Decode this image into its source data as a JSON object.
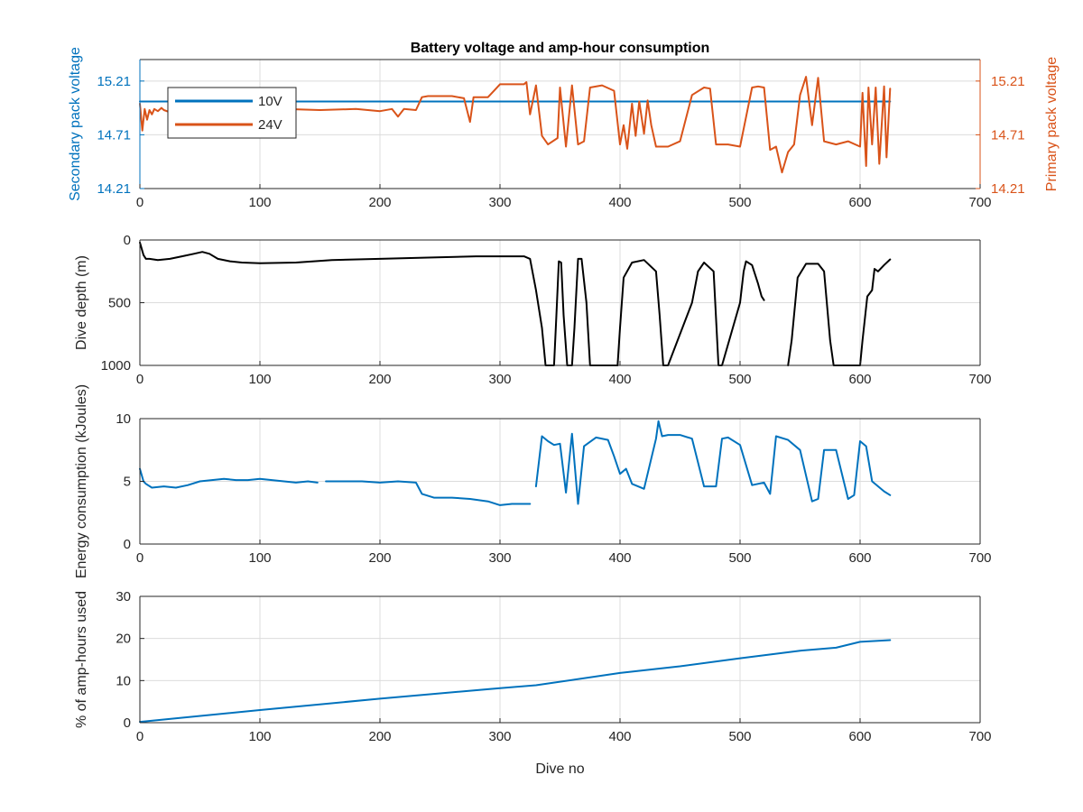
{
  "colors": {
    "blue": "#0072BD",
    "orange": "#D95319",
    "black": "#000000",
    "grid": "#DCDCDC",
    "axis": "#262626"
  },
  "chart_data": [
    {
      "type": "line",
      "title": "Battery voltage and amp-hour consumption",
      "xlabel": "",
      "ylabel": "Secondary pack voltage",
      "ylabel_right": "Primary pack voltage",
      "xlim": [
        0,
        700
      ],
      "ylim": [
        14.21,
        15.41
      ],
      "xticks": [
        0,
        100,
        200,
        300,
        400,
        500,
        600,
        700
      ],
      "yticks": [
        14.21,
        14.71,
        15.21
      ],
      "yticks_right": [
        14.21,
        14.71,
        15.21
      ],
      "legend": {
        "placement": "top-left",
        "entries": [
          "10V",
          "24V"
        ]
      },
      "grid": true,
      "series": [
        {
          "name": "10V",
          "color": "blue",
          "axis": "left",
          "x": [
            0,
            625
          ],
          "y": [
            15.02,
            15.02
          ]
        },
        {
          "name": "24V",
          "color": "orange",
          "axis": "right",
          "x": [
            0,
            2,
            4,
            6,
            8,
            10,
            12,
            15,
            18,
            20,
            25,
            30,
            40,
            60,
            80,
            100,
            120,
            150,
            180,
            200,
            210,
            215,
            220,
            230,
            235,
            240,
            260,
            270,
            275,
            278,
            282,
            290,
            295,
            300,
            310,
            320,
            322,
            325,
            330,
            335,
            340,
            348,
            350,
            355,
            360,
            365,
            370,
            375,
            385,
            395,
            400,
            403,
            406,
            410,
            413,
            416,
            420,
            423,
            426,
            430,
            440,
            450,
            460,
            470,
            475,
            480,
            490,
            500,
            510,
            515,
            520,
            525,
            530,
            535,
            540,
            545,
            550,
            555,
            560,
            565,
            570,
            580,
            590,
            600,
            602,
            605,
            607,
            610,
            613,
            616,
            620,
            622,
            625
          ],
          "y": [
            15.0,
            14.75,
            14.95,
            14.85,
            14.94,
            14.9,
            14.95,
            14.93,
            14.96,
            14.94,
            14.92,
            14.96,
            14.97,
            14.96,
            14.95,
            14.96,
            14.95,
            14.94,
            14.95,
            14.93,
            14.95,
            14.88,
            14.95,
            14.94,
            15.06,
            15.07,
            15.07,
            15.05,
            14.83,
            15.06,
            15.06,
            15.06,
            15.12,
            15.18,
            15.18,
            15.18,
            15.2,
            14.9,
            15.17,
            14.7,
            14.62,
            14.68,
            15.15,
            14.6,
            15.17,
            14.62,
            14.65,
            15.15,
            15.17,
            15.12,
            14.62,
            14.8,
            14.58,
            15.0,
            14.7,
            15.02,
            14.72,
            15.03,
            14.8,
            14.6,
            14.6,
            14.65,
            15.08,
            15.15,
            15.14,
            14.62,
            14.62,
            14.6,
            15.15,
            15.16,
            15.15,
            14.57,
            14.6,
            14.36,
            14.55,
            14.62,
            15.08,
            15.25,
            14.8,
            15.24,
            14.65,
            14.62,
            14.65,
            14.6,
            15.1,
            14.42,
            15.15,
            14.62,
            15.15,
            14.44,
            15.16,
            14.5,
            15.14
          ]
        }
      ]
    },
    {
      "type": "line",
      "title": "",
      "xlabel": "",
      "ylabel": "Dive depth (m)",
      "xlim": [
        0,
        700
      ],
      "ylim": [
        0,
        1000
      ],
      "y_reversed": true,
      "xticks": [
        0,
        100,
        200,
        300,
        400,
        500,
        600,
        700
      ],
      "yticks": [
        0,
        500,
        1000
      ],
      "grid": true,
      "series": [
        {
          "color": "black",
          "segments": [
            {
              "x": [
                0,
                3,
                5,
                8,
                15,
                25,
                35,
                45,
                52,
                58,
                65,
                75,
                85,
                100,
                130,
                160,
                200,
                240,
                280,
                320,
                325,
                330,
                335,
                338,
                345,
                347,
                349,
                351,
                353,
                356,
                360,
                362,
                365,
                368,
                372,
                375,
                398,
                400,
                403,
                410,
                420,
                430,
                433,
                436,
                440,
                460,
                465,
                470,
                478,
                482,
                485,
                500,
                503,
                505,
                510,
                515,
                518,
                520
              ],
              "y": [
                20,
                120,
                150,
                150,
                160,
                150,
                130,
                110,
                95,
                110,
                150,
                170,
                180,
                185,
                180,
                160,
                150,
                140,
                130,
                130,
                150,
                400,
                700,
                1000,
                1000,
                600,
                170,
                180,
                600,
                1000,
                1000,
                700,
                150,
                150,
                500,
                1000,
                1000,
                700,
                300,
                180,
                160,
                250,
                600,
                1000,
                1000,
                500,
                250,
                180,
                250,
                1000,
                1000,
                500,
                250,
                170,
                200,
                350,
                450,
                480
              ]
            },
            {
              "x": [
                540,
                543,
                548,
                555,
                565,
                570,
                575,
                578,
                600,
                602,
                606,
                610,
                612,
                615,
                620,
                625
              ],
              "y": [
                1000,
                800,
                300,
                190,
                190,
                250,
                800,
                1000,
                1000,
                800,
                450,
                400,
                230,
                250,
                200,
                155
              ]
            }
          ]
        }
      ]
    },
    {
      "type": "line",
      "title": "",
      "xlabel": "",
      "ylabel": "Energy consumption (kJoules)",
      "xlim": [
        0,
        700
      ],
      "ylim": [
        0,
        10
      ],
      "xticks": [
        0,
        100,
        200,
        300,
        400,
        500,
        600,
        700
      ],
      "yticks": [
        0,
        5,
        10
      ],
      "grid": true,
      "series": [
        {
          "color": "blue",
          "segments": [
            {
              "x": [
                0,
                3,
                5,
                10,
                20,
                30,
                40,
                50,
                60,
                70,
                80,
                90,
                100,
                110,
                120,
                130,
                140,
                148
              ],
              "y": [
                6.0,
                5.0,
                4.8,
                4.5,
                4.6,
                4.5,
                4.7,
                5.0,
                5.1,
                5.2,
                5.1,
                5.1,
                5.2,
                5.1,
                5.0,
                4.9,
                5.0,
                4.9
              ]
            },
            {
              "x": [
                155,
                170,
                185,
                200,
                215,
                230,
                235,
                245,
                260,
                275,
                290,
                300,
                310,
                325
              ],
              "y": [
                5.0,
                5.0,
                5.0,
                4.9,
                5.0,
                4.9,
                4.0,
                3.7,
                3.7,
                3.6,
                3.4,
                3.1,
                3.2,
                3.2
              ]
            },
            {
              "x": [
                330,
                335,
                340,
                345,
                350,
                355,
                360,
                365,
                370,
                380,
                390,
                395,
                400,
                405,
                410,
                420,
                430,
                432,
                435,
                440,
                450,
                460,
                470,
                480,
                485,
                490,
                500,
                510,
                520,
                525,
                530,
                540,
                550,
                560,
                565,
                570,
                580,
                590,
                595,
                600,
                605,
                610,
                620,
                625
              ],
              "y": [
                4.6,
                8.6,
                8.2,
                7.9,
                8.0,
                4.1,
                8.8,
                3.2,
                7.8,
                8.5,
                8.3,
                7.0,
                5.6,
                6.0,
                4.8,
                4.4,
                8.4,
                9.8,
                8.6,
                8.7,
                8.7,
                8.4,
                4.6,
                4.6,
                8.4,
                8.5,
                7.9,
                4.7,
                4.9,
                4.0,
                8.6,
                8.3,
                7.5,
                3.4,
                3.6,
                7.5,
                7.5,
                3.6,
                3.9,
                8.2,
                7.8,
                5.0,
                4.2,
                3.9
              ]
            }
          ]
        }
      ]
    },
    {
      "type": "line",
      "title": "",
      "xlabel": "Dive no",
      "ylabel": "% of amp-hours used",
      "xlim": [
        0,
        700
      ],
      "ylim": [
        0,
        30
      ],
      "xticks": [
        0,
        100,
        200,
        300,
        400,
        500,
        600,
        700
      ],
      "yticks": [
        0,
        10,
        20,
        30
      ],
      "grid": true,
      "series": [
        {
          "color": "blue",
          "x": [
            0,
            100,
            200,
            300,
            330,
            400,
            450,
            500,
            550,
            580,
            600,
            625
          ],
          "y": [
            0.2,
            3.0,
            5.7,
            8.2,
            8.9,
            11.8,
            13.4,
            15.3,
            17.1,
            17.8,
            19.2,
            19.6
          ]
        }
      ]
    }
  ]
}
